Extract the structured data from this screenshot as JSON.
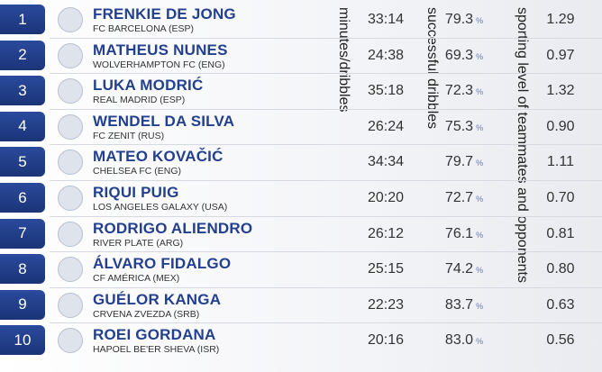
{
  "headers": {
    "time": "minutes/dribbles",
    "success": "successful dribbles",
    "level": "sporting level of teammates and opponents"
  },
  "rows": [
    {
      "rank": "1",
      "name": "FRENKIE DE JONG",
      "club": "FC BARCELONA (ESP)",
      "time": "33:14",
      "success": "79.3",
      "unit": "%",
      "level": "1.29"
    },
    {
      "rank": "2",
      "name": "MATHEUS NUNES",
      "club": "WOLVERHAMPTON FC (ENG)",
      "time": "24:38",
      "success": "69.3",
      "unit": "%",
      "level": "0.97"
    },
    {
      "rank": "3",
      "name": "LUKA MODRIĆ",
      "club": "REAL MADRID (ESP)",
      "time": "35:18",
      "success": "72.3",
      "unit": "%",
      "level": "1.32"
    },
    {
      "rank": "4",
      "name": "WENDEL DA SILVA",
      "club": "FC ZENIT (RUS)",
      "time": "26:24",
      "success": "75.3",
      "unit": "%",
      "level": "0.90"
    },
    {
      "rank": "5",
      "name": "MATEO KOVAČIĆ",
      "club": "CHELSEA FC (ENG)",
      "time": "34:34",
      "success": "79.7",
      "unit": "%",
      "level": "1.11"
    },
    {
      "rank": "6",
      "name": "RIQUI PUIG",
      "club": "LOS ANGELES GALAXY (USA)",
      "time": "20:20",
      "success": "72.7",
      "unit": "%",
      "level": "0.70"
    },
    {
      "rank": "7",
      "name": "RODRIGO ALIENDRO",
      "club": "RIVER PLATE (ARG)",
      "time": "26:12",
      "success": "76.1",
      "unit": "%",
      "level": "0.81"
    },
    {
      "rank": "8",
      "name": "ÁLVARO FIDALGO",
      "club": "CF AMÉRICA (MEX)",
      "time": "25:15",
      "success": "74.2",
      "unit": "%",
      "level": "0.80"
    },
    {
      "rank": "9",
      "name": "GUÉLOR KANGA",
      "club": "CRVENA ZVEZDA (SRB)",
      "time": "22:23",
      "success": "83.7",
      "unit": "%",
      "level": "0.63"
    },
    {
      "rank": "10",
      "name": "ROEI GORDANA",
      "club": "HAPOEL BE'ER SHEVA (ISR)",
      "time": "20:16",
      "success": "83.0",
      "unit": "%",
      "level": "0.56"
    }
  ]
}
